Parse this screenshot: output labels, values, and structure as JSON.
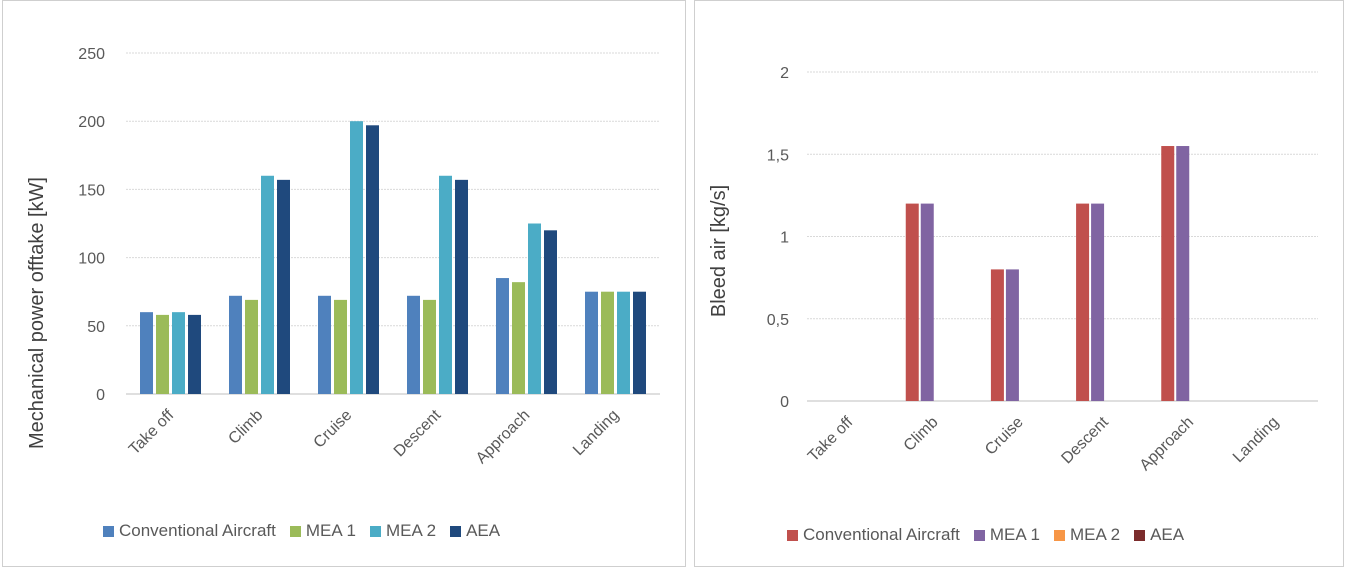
{
  "chart_data": [
    {
      "type": "bar",
      "title": "",
      "xlabel": "",
      "ylabel": "Mechanical power offtake [kW]",
      "ylim": [
        0,
        250
      ],
      "yticks": [
        "0",
        "50",
        "100",
        "150",
        "200",
        "250"
      ],
      "ytick_values": [
        0,
        50,
        100,
        150,
        200,
        250
      ],
      "categories": [
        "Take off",
        "Climb",
        "Cruise",
        "Descent",
        "Approach",
        "Landing"
      ],
      "grid": true,
      "legend_position": "bottom",
      "series": [
        {
          "name": "Conventional Aircraft",
          "color": "#4f81bd",
          "values": [
            60,
            72,
            72,
            72,
            85,
            75
          ]
        },
        {
          "name": "MEA 1",
          "color": "#9bbb59",
          "values": [
            58,
            69,
            69,
            69,
            82,
            75
          ]
        },
        {
          "name": "MEA 2",
          "color": "#4bacc6",
          "values": [
            60,
            160,
            200,
            160,
            125,
            75
          ]
        },
        {
          "name": "AEA",
          "color": "#1f497d",
          "values": [
            58,
            157,
            197,
            157,
            120,
            75
          ]
        }
      ]
    },
    {
      "type": "bar",
      "title": "",
      "xlabel": "",
      "ylabel": "Bleed air [kg/s]",
      "ylim": [
        0,
        2
      ],
      "yticks": [
        "0",
        "0,5",
        "1",
        "1,5",
        "2"
      ],
      "ytick_values": [
        0,
        0.5,
        1,
        1.5,
        2
      ],
      "categories": [
        "Take off",
        "Climb",
        "Cruise",
        "Descent",
        "Approach",
        "Landing"
      ],
      "grid": true,
      "legend_position": "bottom",
      "series": [
        {
          "name": "Conventional Aircraft",
          "color": "#c0504d",
          "values": [
            0,
            1.2,
            0.8,
            1.2,
            1.55,
            0
          ]
        },
        {
          "name": "MEA 1",
          "color": "#8064a2",
          "values": [
            0,
            1.2,
            0.8,
            1.2,
            1.55,
            0
          ]
        },
        {
          "name": "MEA 2",
          "color": "#f79646",
          "values": [
            0,
            0,
            0,
            0,
            0,
            0
          ]
        },
        {
          "name": "AEA",
          "color": "#7b2c2c",
          "values": [
            0,
            0,
            0,
            0,
            0,
            0
          ]
        }
      ]
    }
  ]
}
